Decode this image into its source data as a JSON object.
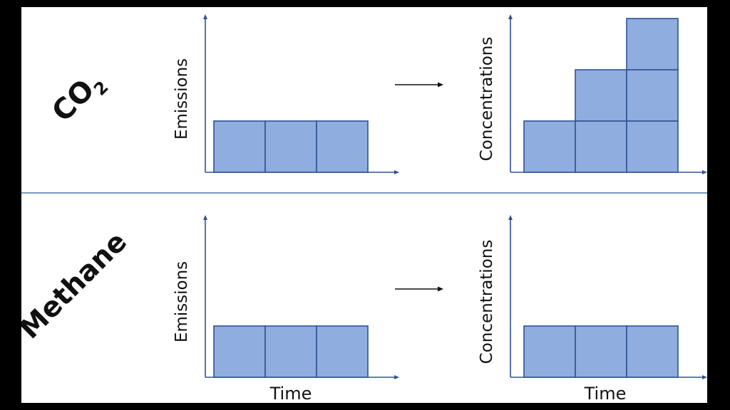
{
  "rows": [
    {
      "gas_main": "CO",
      "gas_sub": "2",
      "left_chart": {
        "ylabel": "Emissions",
        "xlabel": "",
        "bars": [
          1,
          1,
          1
        ]
      },
      "right_chart": {
        "ylabel": "Concentrations",
        "xlabel": "",
        "bars": [
          1,
          2,
          3
        ]
      }
    },
    {
      "gas_main": "Methane",
      "gas_sub": "",
      "left_chart": {
        "ylabel": "Emissions",
        "xlabel": "Time",
        "bars": [
          1,
          1,
          1
        ]
      },
      "right_chart": {
        "ylabel": "Concentrations",
        "xlabel": "Time",
        "bars": [
          1,
          1,
          1
        ]
      }
    }
  ],
  "colors": {
    "block_fill": "#8fadde",
    "block_stroke": "#2f5395",
    "axis": "#2f5395",
    "divider": "#4f79a8",
    "arrow": "#111111"
  }
}
